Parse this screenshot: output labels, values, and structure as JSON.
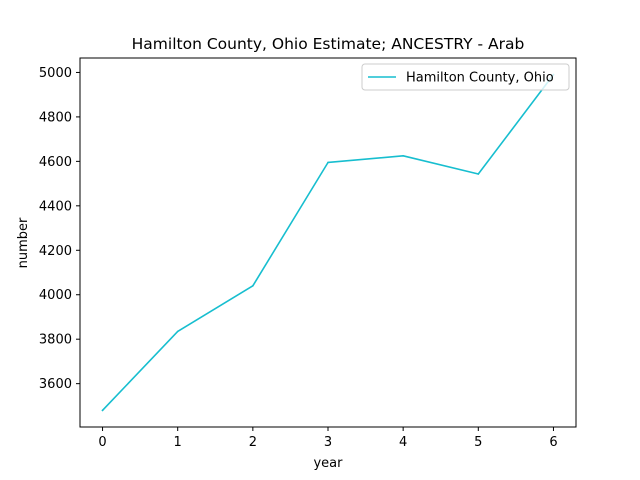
{
  "chart_data": {
    "type": "line",
    "title": "Hamilton County, Ohio Estimate; ANCESTRY - Arab",
    "xlabel": "year",
    "ylabel": "number",
    "x": [
      0,
      1,
      2,
      3,
      4,
      5,
      6
    ],
    "series": [
      {
        "name": "Hamilton County, Ohio",
        "color": "#17becf",
        "values": [
          3480,
          3835,
          4040,
          4595,
          4625,
          4543,
          4990
        ]
      }
    ],
    "xticks": [
      0,
      1,
      2,
      3,
      4,
      5,
      6
    ],
    "yticks": [
      3600,
      3800,
      4000,
      4200,
      4400,
      4600,
      4800,
      5000
    ],
    "xlim": [
      -0.3,
      6.3
    ],
    "ylim": [
      3405,
      5065
    ],
    "grid": false,
    "legend_position": "top-right"
  }
}
